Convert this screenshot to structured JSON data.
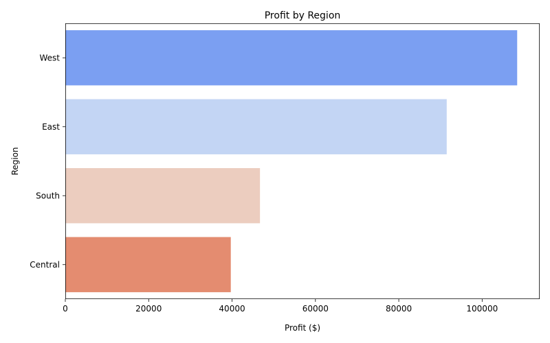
{
  "chart_data": {
    "type": "bar",
    "orientation": "horizontal",
    "title": "Profit by Region",
    "xlabel": "Profit ($)",
    "ylabel": "Region",
    "categories": [
      "West",
      "East",
      "South",
      "Central"
    ],
    "values": [
      108400,
      91500,
      46700,
      39700
    ],
    "colors": [
      "#7b9ff2",
      "#c3d5f4",
      "#eccdbf",
      "#e48c70"
    ],
    "xlim": [
      0,
      113800
    ],
    "xticks": [
      0,
      20000,
      40000,
      60000,
      80000,
      100000
    ],
    "xtick_labels": [
      "0",
      "20000",
      "40000",
      "60000",
      "80000",
      "100000"
    ],
    "grid": false,
    "legend": "none"
  }
}
